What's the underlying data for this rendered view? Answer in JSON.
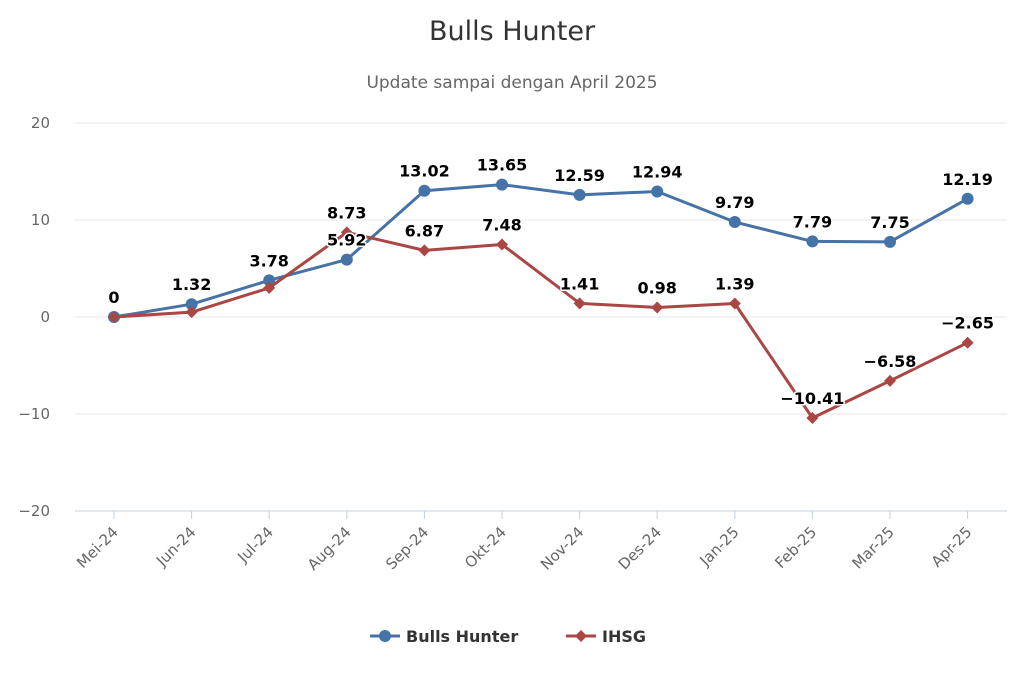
{
  "chart_data": {
    "type": "line",
    "title": "Bulls Hunter",
    "subtitle": "Update sampai dengan April 2025",
    "categories": [
      "Mei-24",
      "Jun-24",
      "Jul-24",
      "Aug-24",
      "Sep-24",
      "Okt-24",
      "Nov-24",
      "Des-24",
      "Jan-25",
      "Feb-25",
      "Mar-25",
      "Apr-25"
    ],
    "series": [
      {
        "name": "Bulls Hunter",
        "color": "#4572a7",
        "marker": "circle",
        "values": [
          0,
          1.32,
          3.78,
          5.92,
          13.02,
          13.65,
          12.59,
          12.94,
          9.79,
          7.79,
          7.75,
          12.19
        ],
        "labels": [
          "0",
          "1.32",
          "3.78",
          "5.92",
          "13.02",
          "13.65",
          "12.59",
          "12.94",
          "9.79",
          "7.79",
          "7.75",
          "12.19"
        ]
      },
      {
        "name": "IHSG",
        "color": "#aa4643",
        "marker": "diamond",
        "values": [
          0,
          0.5,
          3.0,
          8.73,
          6.87,
          7.48,
          1.41,
          0.98,
          1.39,
          -10.41,
          -6.58,
          -2.65
        ],
        "labels": [
          "",
          "",
          "",
          "8.73",
          "6.87",
          "7.48",
          "1.41",
          "0.98",
          "1.39",
          "−10.41",
          "−6.58",
          "−2.65"
        ]
      }
    ],
    "yticks": [
      20,
      10,
      0,
      -10,
      -20
    ],
    "ytick_labels": [
      "20",
      "10",
      "0",
      "−10",
      "−20"
    ],
    "ylim": [
      -20,
      20
    ],
    "grid": true,
    "legend_position": "bottom-center"
  }
}
